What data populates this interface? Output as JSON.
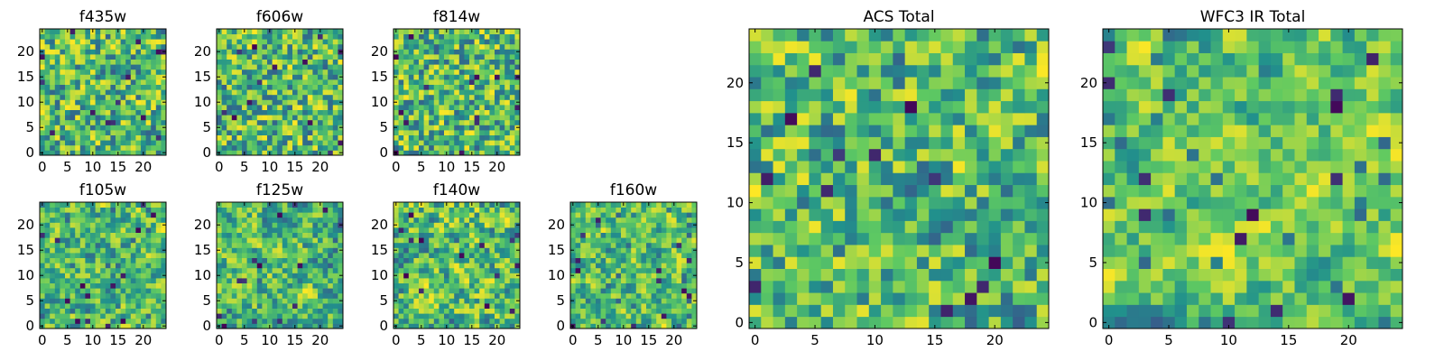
{
  "figure": "Residual heatmap grid, 25x25 pixel cutouts per filter (viridis colormap)",
  "colors": {
    "viridis": [
      "#440154",
      "#3b528b",
      "#21918c",
      "#5ec962",
      "#fde725"
    ]
  },
  "chart_data": [
    {
      "type": "heatmap",
      "title": "f435w",
      "grid": [
        25,
        25
      ],
      "seed": 11,
      "smooth": 0.1,
      "xlim": [
        0,
        25
      ],
      "ylim": [
        0,
        25
      ],
      "xticks": [
        0,
        5,
        10,
        15,
        20
      ],
      "yticks": [
        0,
        5,
        10,
        15,
        20
      ],
      "xtick_labels": [
        "0",
        "5",
        "10",
        "15",
        "20"
      ],
      "ytick_labels": [
        "0",
        "5",
        "10",
        "15",
        "20"
      ]
    },
    {
      "type": "heatmap",
      "title": "f606w",
      "grid": [
        25,
        25
      ],
      "seed": 23,
      "smooth": 0.1,
      "xlim": [
        0,
        25
      ],
      "ylim": [
        0,
        25
      ],
      "xticks": [
        0,
        5,
        10,
        15,
        20
      ],
      "yticks": [
        0,
        5,
        10,
        15,
        20
      ],
      "xtick_labels": [
        "0",
        "5",
        "10",
        "15",
        "20"
      ],
      "ytick_labels": [
        "0",
        "5",
        "10",
        "15",
        "20"
      ]
    },
    {
      "type": "heatmap",
      "title": "f814w",
      "grid": [
        25,
        25
      ],
      "seed": 37,
      "smooth": 0.1,
      "xlim": [
        0,
        25
      ],
      "ylim": [
        0,
        25
      ],
      "xticks": [
        0,
        5,
        10,
        15,
        20
      ],
      "yticks": [
        0,
        5,
        10,
        15,
        20
      ],
      "xtick_labels": [
        "0",
        "5",
        "10",
        "15",
        "20"
      ],
      "ytick_labels": [
        "0",
        "5",
        "10",
        "15",
        "20"
      ]
    },
    {
      "type": "heatmap",
      "title": "f105w",
      "grid": [
        25,
        25
      ],
      "seed": 41,
      "smooth": 0.45,
      "xlim": [
        0,
        25
      ],
      "ylim": [
        0,
        25
      ],
      "xticks": [
        0,
        5,
        10,
        15,
        20
      ],
      "yticks": [
        0,
        5,
        10,
        15,
        20
      ],
      "xtick_labels": [
        "0",
        "5",
        "10",
        "15",
        "20"
      ],
      "ytick_labels": [
        "0",
        "5",
        "10",
        "15",
        "20"
      ]
    },
    {
      "type": "heatmap",
      "title": "f125w",
      "grid": [
        25,
        25
      ],
      "seed": 53,
      "smooth": 0.45,
      "xlim": [
        0,
        25
      ],
      "ylim": [
        0,
        25
      ],
      "xticks": [
        0,
        5,
        10,
        15,
        20
      ],
      "yticks": [
        0,
        5,
        10,
        15,
        20
      ],
      "xtick_labels": [
        "0",
        "5",
        "10",
        "15",
        "20"
      ],
      "ytick_labels": [
        "0",
        "5",
        "10",
        "15",
        "20"
      ]
    },
    {
      "type": "heatmap",
      "title": "f140w",
      "grid": [
        25,
        25
      ],
      "seed": 67,
      "smooth": 0.45,
      "xlim": [
        0,
        25
      ],
      "ylim": [
        0,
        25
      ],
      "xticks": [
        0,
        5,
        10,
        15,
        20
      ],
      "yticks": [
        0,
        5,
        10,
        15,
        20
      ],
      "xtick_labels": [
        "0",
        "5",
        "10",
        "15",
        "20"
      ],
      "ytick_labels": [
        "0",
        "5",
        "10",
        "15",
        "20"
      ]
    },
    {
      "type": "heatmap",
      "title": "f160w",
      "grid": [
        25,
        25
      ],
      "seed": 79,
      "smooth": 0.45,
      "xlim": [
        0,
        25
      ],
      "ylim": [
        0,
        25
      ],
      "xticks": [
        0,
        5,
        10,
        15,
        20
      ],
      "yticks": [
        0,
        5,
        10,
        15,
        20
      ],
      "xtick_labels": [
        "0",
        "5",
        "10",
        "15",
        "20"
      ],
      "ytick_labels": [
        "0",
        "5",
        "10",
        "15",
        "20"
      ]
    },
    {
      "type": "heatmap",
      "title": "ACS Total",
      "grid": [
        25,
        25
      ],
      "seed": 83,
      "smooth": 0.2,
      "xlim": [
        0,
        25
      ],
      "ylim": [
        0,
        25
      ],
      "xticks": [
        0,
        5,
        10,
        15,
        20
      ],
      "yticks": [
        0,
        5,
        10,
        15,
        20
      ],
      "xtick_labels": [
        "0",
        "5",
        "10",
        "15",
        "20"
      ],
      "ytick_labels": [
        "0",
        "5",
        "10",
        "15",
        "20"
      ]
    },
    {
      "type": "heatmap",
      "title": "WFC3 IR Total",
      "grid": [
        25,
        25
      ],
      "seed": 97,
      "smooth": 0.6,
      "xlim": [
        0,
        25
      ],
      "ylim": [
        0,
        25
      ],
      "xticks": [
        0,
        5,
        10,
        15,
        20
      ],
      "yticks": [
        0,
        5,
        10,
        15,
        20
      ],
      "xtick_labels": [
        "0",
        "5",
        "10",
        "15",
        "20"
      ],
      "ytick_labels": [
        "0",
        "5",
        "10",
        "15",
        "20"
      ]
    }
  ]
}
